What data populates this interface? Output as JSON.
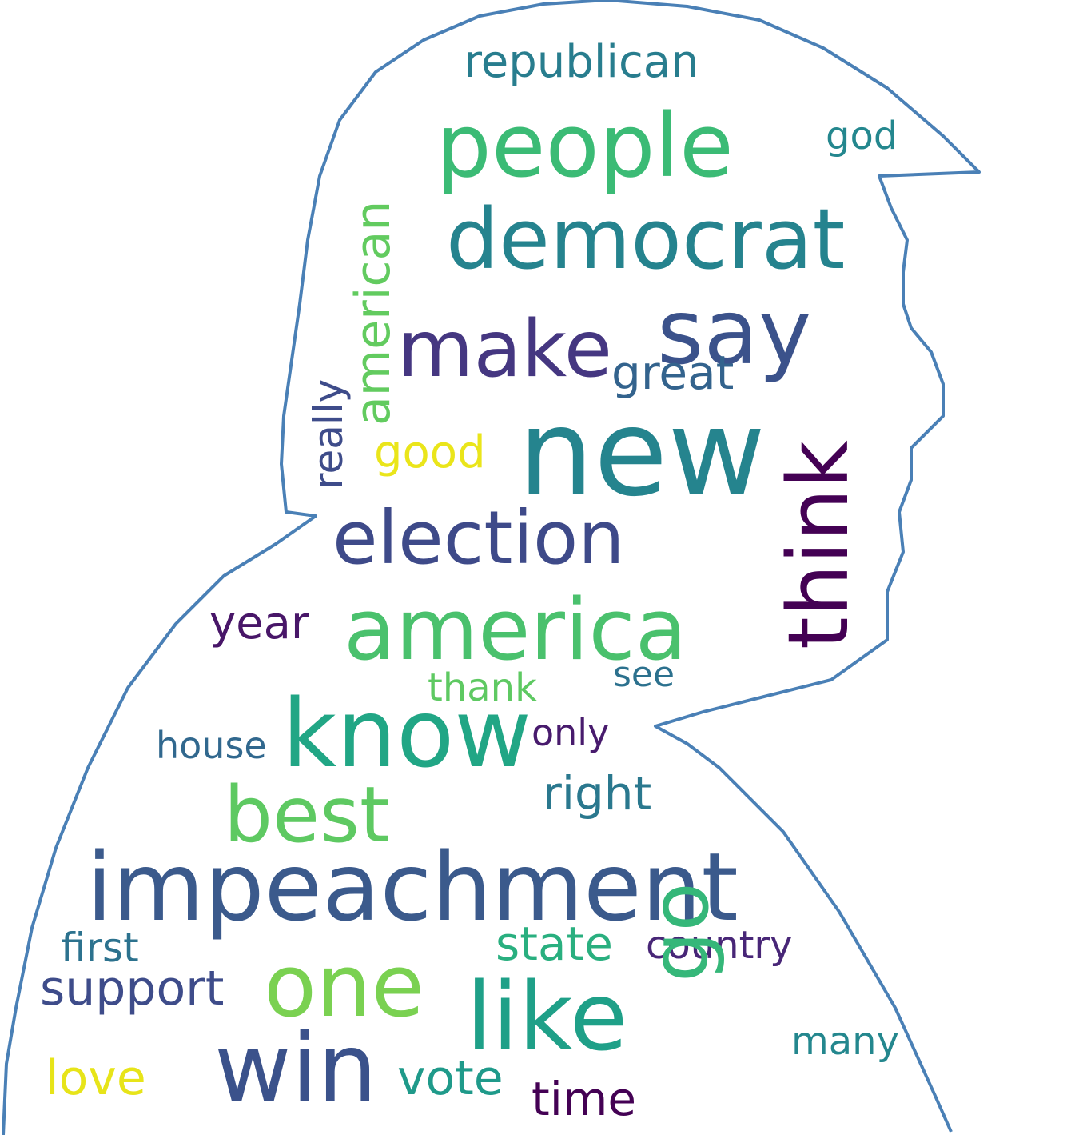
{
  "outline_color": "#4a80b6",
  "words": [
    {
      "text": "republican",
      "color": "#287d8e"
    },
    {
      "text": "people",
      "color": "#3bbb75"
    },
    {
      "text": "god",
      "color": "#24878e"
    },
    {
      "text": "democrat",
      "color": "#25838e"
    },
    {
      "text": "american",
      "color": "#62cb5f"
    },
    {
      "text": "say",
      "color": "#3b528b"
    },
    {
      "text": "make",
      "color": "#453781"
    },
    {
      "text": "great",
      "color": "#33638d"
    },
    {
      "text": "really",
      "color": "#3e4c8a"
    },
    {
      "text": "good",
      "color": "#eae51a"
    },
    {
      "text": "new",
      "color": "#25848e"
    },
    {
      "text": "think",
      "color": "#440154"
    },
    {
      "text": "election",
      "color": "#3e4a89"
    },
    {
      "text": "year",
      "color": "#481668"
    },
    {
      "text": "america",
      "color": "#4ac16d"
    },
    {
      "text": "see",
      "color": "#2c718e"
    },
    {
      "text": "thank",
      "color": "#5ec962"
    },
    {
      "text": "know",
      "color": "#21a685"
    },
    {
      "text": "house",
      "color": "#31688e"
    },
    {
      "text": "only",
      "color": "#481b6d"
    },
    {
      "text": "right",
      "color": "#2a788e"
    },
    {
      "text": "best",
      "color": "#5ec962"
    },
    {
      "text": "impeachment",
      "color": "#3b5a8c"
    },
    {
      "text": "first",
      "color": "#2c728e"
    },
    {
      "text": "state",
      "color": "#29af7f"
    },
    {
      "text": "country",
      "color": "#482677"
    },
    {
      "text": "support",
      "color": "#3e4c8a"
    },
    {
      "text": "one",
      "color": "#7ad151"
    },
    {
      "text": "like",
      "color": "#1fa088"
    },
    {
      "text": "go",
      "color": "#35b779"
    },
    {
      "text": "many",
      "color": "#24878e"
    },
    {
      "text": "love",
      "color": "#e7e419"
    },
    {
      "text": "win",
      "color": "#3b528b"
    },
    {
      "text": "vote",
      "color": "#1f9a8a"
    },
    {
      "text": "time",
      "color": "#440154"
    }
  ]
}
